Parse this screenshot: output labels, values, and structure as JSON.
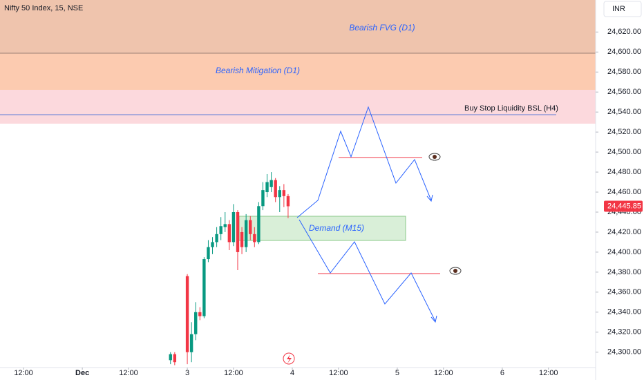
{
  "chart_data": {
    "type": "candlestick",
    "title": "Nifty 50 Index, 15, NSE",
    "currency": "INR",
    "x": [
      -4,
      -3,
      0,
      1,
      2,
      3,
      4,
      5,
      6,
      7,
      8,
      9,
      10,
      11,
      12,
      13,
      14,
      15,
      16,
      17,
      18,
      19,
      20,
      21,
      22,
      23,
      24
    ],
    "open": [
      24292,
      24298,
      24376,
      24300,
      24318,
      24340,
      24336,
      24393,
      24405,
      24410,
      24418,
      24425,
      24428,
      24410,
      24440,
      24420,
      24405,
      24432,
      24418,
      24410,
      24446,
      24460,
      24465,
      24472,
      24455,
      24462,
      24456
    ],
    "high": [
      24300,
      24300,
      24378,
      24330,
      24350,
      24345,
      24395,
      24412,
      24415,
      24425,
      24435,
      24440,
      24432,
      24448,
      24442,
      24425,
      24438,
      24436,
      24425,
      24450,
      24470,
      24478,
      24480,
      24474,
      24466,
      24468,
      24458
    ],
    "low": [
      24288,
      24287,
      24288,
      24290,
      24312,
      24332,
      24334,
      24390,
      24398,
      24405,
      24412,
      24420,
      24402,
      24406,
      24382,
      24398,
      24400,
      24412,
      24405,
      24408,
      24442,
      24455,
      24460,
      24450,
      24440,
      24445,
      24434
    ],
    "close": [
      24298,
      24290,
      24300,
      24318,
      24340,
      24336,
      24393,
      24405,
      24410,
      24418,
      24426,
      24428,
      24410,
      24440,
      24400,
      24405,
      24432,
      24418,
      24410,
      24446,
      24462,
      24470,
      24472,
      24455,
      24462,
      24456,
      24445.85
    ],
    "up_color": "#089981",
    "down_color": "#f23645",
    "xlim": [
      -44.6,
      96.9
    ],
    "xticks": [
      {
        "value": -39,
        "label": "12:00"
      },
      {
        "value": -25,
        "label": "Dec"
      },
      {
        "value": -14,
        "label": "12:00"
      },
      {
        "value": 0,
        "label": "3"
      },
      {
        "value": 11,
        "label": "12:00"
      },
      {
        "value": 25,
        "label": "4"
      },
      {
        "value": 36,
        "label": "12:00"
      },
      {
        "value": 50,
        "label": "5"
      },
      {
        "value": 61,
        "label": "12:00"
      },
      {
        "value": 75,
        "label": "6"
      },
      {
        "value": 86,
        "label": "12:00"
      }
    ],
    "ylim": [
      24286,
      24652
    ],
    "yticks": [
      {
        "value": 24300,
        "label": "24,300.00"
      },
      {
        "value": 24320,
        "label": "24,320.00"
      },
      {
        "value": 24340,
        "label": "24,340.00"
      },
      {
        "value": 24360,
        "label": "24,360.00"
      },
      {
        "value": 24380,
        "label": "24,380.00"
      },
      {
        "value": 24400,
        "label": "24,400.00"
      },
      {
        "value": 24420,
        "label": "24,420.00"
      },
      {
        "value": 24440,
        "label": "24,440.00"
      },
      {
        "value": 24460,
        "label": "24,460.00"
      },
      {
        "value": 24480,
        "label": "24,480.00"
      },
      {
        "value": 24500,
        "label": "24,500.00"
      },
      {
        "value": 24520,
        "label": "24,520.00"
      },
      {
        "value": 24540,
        "label": "24,540.00"
      },
      {
        "value": 24560,
        "label": "24,560.00"
      },
      {
        "value": 24580,
        "label": "24,580.00"
      },
      {
        "value": 24600,
        "label": "24,600.00"
      },
      {
        "value": 24620,
        "label": "24,620.00"
      }
    ],
    "last_price": {
      "value": 24445.85,
      "label": "24,445.85"
    },
    "annotations": [
      "Bearish FVG (D1)",
      "Bearish Mitigation (D1)",
      "Buy Stop Liquidity BSL (H4)",
      "Demand (M15)"
    ]
  }
}
